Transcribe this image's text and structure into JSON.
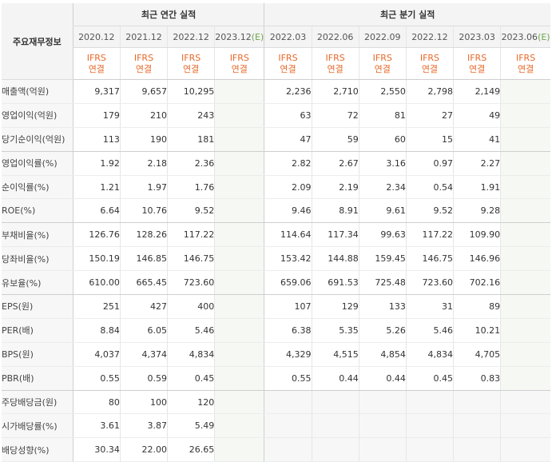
{
  "table": {
    "corner_label": "주요재무정보",
    "groups": {
      "annual": "최근 연간 실적",
      "quarterly": "최근 분기 실적"
    },
    "annual_periods": [
      "2020.12",
      "2021.12",
      "2022.12",
      "2023.12"
    ],
    "annual_estimate_mark": "(E)",
    "quarter_periods": [
      "2022.03",
      "2022.06",
      "2022.09",
      "2022.12",
      "2023.03",
      "2023.06"
    ],
    "quarter_estimate_mark": "(E)",
    "ifrs_label": "IFRS",
    "consolidated_label": "연결",
    "rows": [
      {
        "label": "매출액(억원)",
        "annual": [
          "9,317",
          "9,657",
          "10,295",
          ""
        ],
        "quarter": [
          "2,236",
          "2,710",
          "2,550",
          "2,798",
          "2,149",
          ""
        ]
      },
      {
        "label": "영업이익(억원)",
        "annual": [
          "179",
          "210",
          "243",
          ""
        ],
        "quarter": [
          "63",
          "72",
          "81",
          "27",
          "49",
          ""
        ]
      },
      {
        "label": "당기순이익(억원)",
        "annual": [
          "113",
          "190",
          "181",
          ""
        ],
        "quarter": [
          "47",
          "59",
          "60",
          "15",
          "41",
          ""
        ]
      },
      {
        "label": "영업이익률(%)",
        "annual": [
          "1.92",
          "2.18",
          "2.36",
          ""
        ],
        "quarter": [
          "2.82",
          "2.67",
          "3.16",
          "0.97",
          "2.27",
          ""
        ]
      },
      {
        "label": "순이익률(%)",
        "annual": [
          "1.21",
          "1.97",
          "1.76",
          ""
        ],
        "quarter": [
          "2.09",
          "2.19",
          "2.34",
          "0.54",
          "1.91",
          ""
        ]
      },
      {
        "label": "ROE(%)",
        "annual": [
          "6.64",
          "10.76",
          "9.52",
          ""
        ],
        "quarter": [
          "9.46",
          "8.91",
          "9.61",
          "9.52",
          "9.28",
          ""
        ]
      },
      {
        "label": "부채비율(%)",
        "annual": [
          "126.76",
          "128.26",
          "117.22",
          ""
        ],
        "quarter": [
          "114.64",
          "117.34",
          "99.63",
          "117.22",
          "109.90",
          ""
        ]
      },
      {
        "label": "당좌비율(%)",
        "annual": [
          "150.19",
          "146.85",
          "146.75",
          ""
        ],
        "quarter": [
          "153.42",
          "144.88",
          "159.45",
          "146.75",
          "146.96",
          ""
        ]
      },
      {
        "label": "유보율(%)",
        "annual": [
          "610.00",
          "665.45",
          "723.60",
          ""
        ],
        "quarter": [
          "659.06",
          "691.53",
          "725.48",
          "723.60",
          "702.16",
          ""
        ]
      },
      {
        "label": "EPS(원)",
        "annual": [
          "251",
          "427",
          "400",
          ""
        ],
        "quarter": [
          "107",
          "129",
          "133",
          "31",
          "89",
          ""
        ]
      },
      {
        "label": "PER(배)",
        "annual": [
          "8.84",
          "6.05",
          "5.46",
          ""
        ],
        "quarter": [
          "6.38",
          "5.35",
          "5.26",
          "5.46",
          "10.21",
          ""
        ]
      },
      {
        "label": "BPS(원)",
        "annual": [
          "4,037",
          "4,374",
          "4,834",
          ""
        ],
        "quarter": [
          "4,329",
          "4,515",
          "4,854",
          "4,834",
          "4,705",
          ""
        ]
      },
      {
        "label": "PBR(배)",
        "annual": [
          "0.55",
          "0.59",
          "0.45",
          ""
        ],
        "quarter": [
          "0.55",
          "0.44",
          "0.44",
          "0.45",
          "0.83",
          ""
        ]
      },
      {
        "label": "주당배당금(원)",
        "annual": [
          "80",
          "100",
          "120",
          ""
        ],
        "quarter": []
      },
      {
        "label": "시가배당률(%)",
        "annual": [
          "3.61",
          "3.87",
          "5.49",
          ""
        ],
        "quarter": []
      },
      {
        "label": "배당성향(%)",
        "annual": [
          "30.34",
          "22.00",
          "26.65",
          ""
        ],
        "quarter": []
      }
    ]
  },
  "colors": {
    "header_bg": "#f4f4f4",
    "ifrs_orange": "#e8692a",
    "estimate_bg": "#f6f9f3",
    "estimate_mark": "#6aa64b"
  }
}
